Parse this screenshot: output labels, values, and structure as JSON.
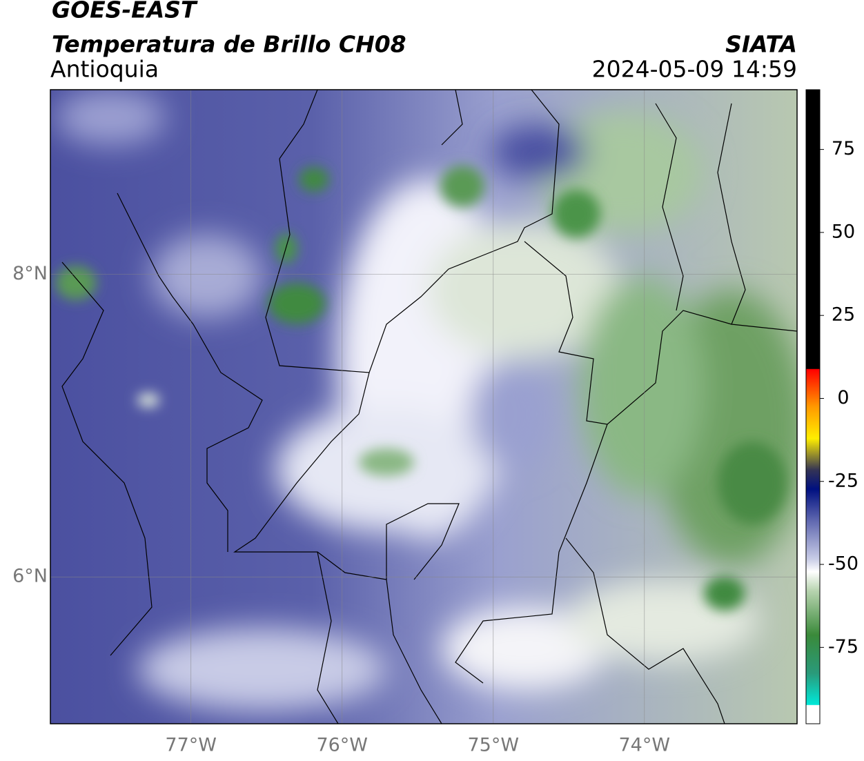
{
  "header": {
    "title": "GOES-EAST",
    "subtitle": "Temperatura de Brillo CH08",
    "region": "Antioquia",
    "source": "SIATA",
    "datetime": "2024-05-09 14:59"
  },
  "map": {
    "lonlim": [
      -77.93,
      -72.99
    ],
    "latlim": [
      5.03,
      9.22
    ],
    "lon_ticks": [
      {
        "value": -77,
        "label": "77°W"
      },
      {
        "value": -76,
        "label": "76°W"
      },
      {
        "value": -75,
        "label": "75°W"
      },
      {
        "value": -74,
        "label": "74°W"
      }
    ],
    "lat_ticks": [
      {
        "value": 8,
        "label": "8°N"
      },
      {
        "value": 6,
        "label": "6°N"
      }
    ],
    "grid": true
  },
  "colorbar": {
    "range": [
      -98,
      93
    ],
    "ticks": [
      75,
      50,
      25,
      0,
      -25,
      -50,
      -75
    ]
  }
}
